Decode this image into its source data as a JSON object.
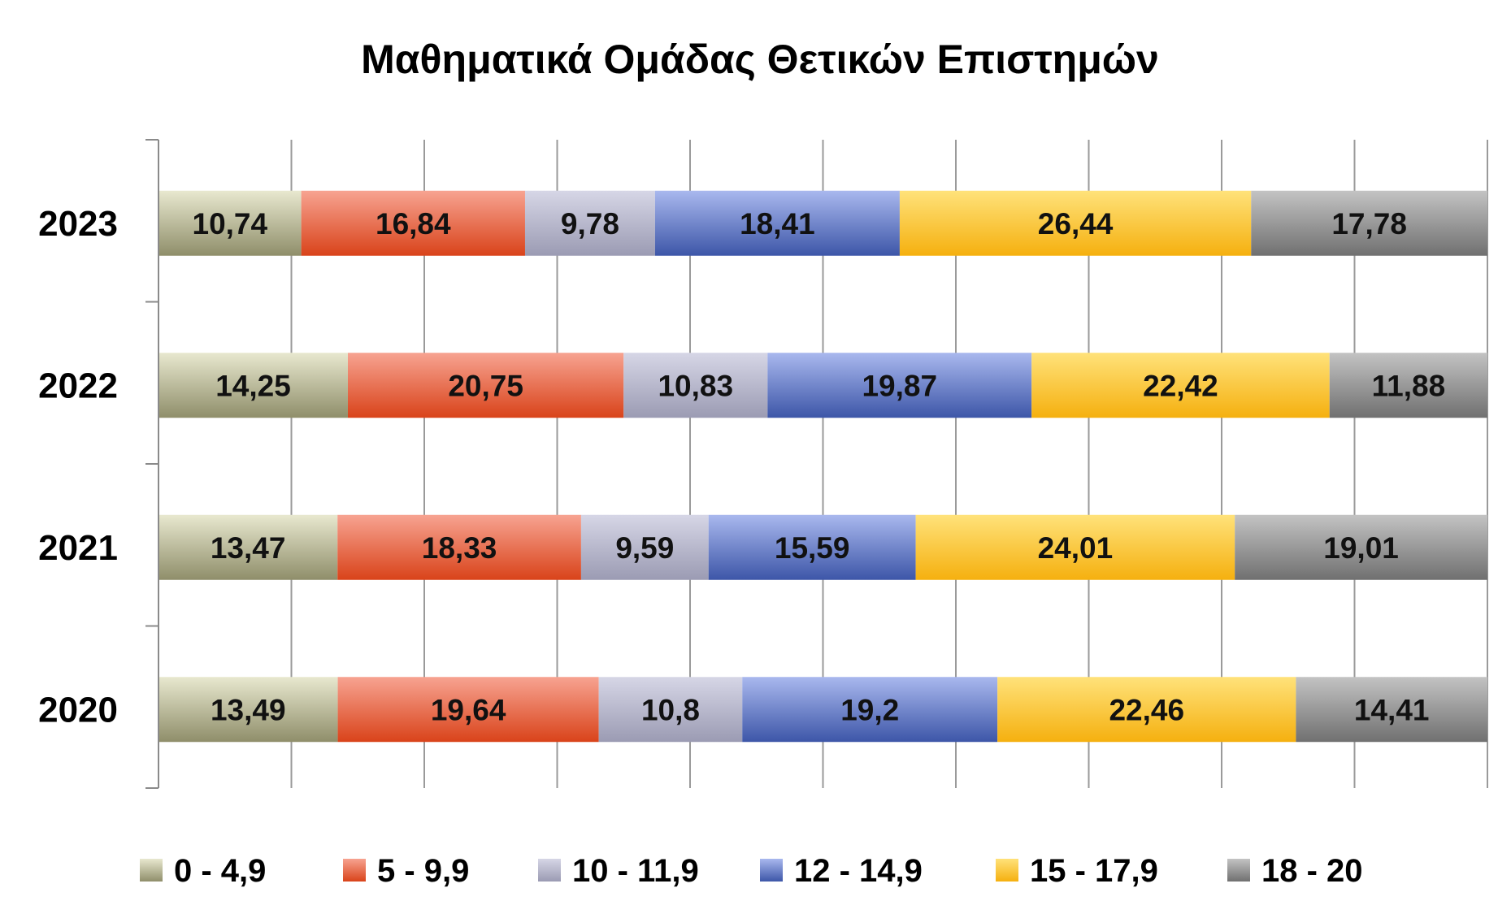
{
  "chart_data": {
    "type": "bar",
    "orientation": "horizontal",
    "stacked": "percent",
    "title": "Μαθηματικά Ομάδας Θετικών Επιστημών",
    "categories": [
      "2023",
      "2022",
      "2021",
      "2020"
    ],
    "series": [
      {
        "name": "0  -  4,9",
        "values": [
          10.74,
          14.25,
          13.47,
          13.49
        ],
        "labels": [
          "10,74",
          "14,25",
          "13,47",
          "13,49"
        ],
        "color_light": "#e8e8cf",
        "color_dark": "#8f8e6a"
      },
      {
        "name": "5  - 9,9",
        "values": [
          16.84,
          20.75,
          18.33,
          19.64
        ],
        "labels": [
          "16,84",
          "20,75",
          "18,33",
          "19,64"
        ],
        "color_light": "#f7a391",
        "color_dark": "#d9431a"
      },
      {
        "name": "10 - 11,9",
        "values": [
          9.78,
          10.83,
          9.59,
          10.8
        ],
        "labels": [
          "9,78",
          "10,83",
          "9,59",
          "10,8"
        ],
        "color_light": "#d6d6e6",
        "color_dark": "#9b9bb3"
      },
      {
        "name": "12  - 14,9",
        "values": [
          18.41,
          19.87,
          15.59,
          19.2
        ],
        "labels": [
          "18,41",
          "19,87",
          "15,59",
          "19,2"
        ],
        "color_light": "#a9b8ee",
        "color_dark": "#3d56a8"
      },
      {
        "name": "15  - 17,9",
        "values": [
          26.44,
          22.42,
          24.01,
          22.46
        ],
        "labels": [
          "26,44",
          "22,42",
          "24,01",
          "22,46"
        ],
        "color_light": "#ffe27a",
        "color_dark": "#f5b00f"
      },
      {
        "name": "18  - 20",
        "values": [
          17.78,
          11.88,
          19.01,
          14.41
        ],
        "labels": [
          "17,78",
          "11,88",
          "19,01",
          "14,41"
        ],
        "color_light": "#c3c3c3",
        "color_dark": "#707070"
      }
    ],
    "xlim": [
      0,
      100
    ],
    "x_gridlines": 10,
    "grid": true,
    "legend_position": "bottom"
  }
}
